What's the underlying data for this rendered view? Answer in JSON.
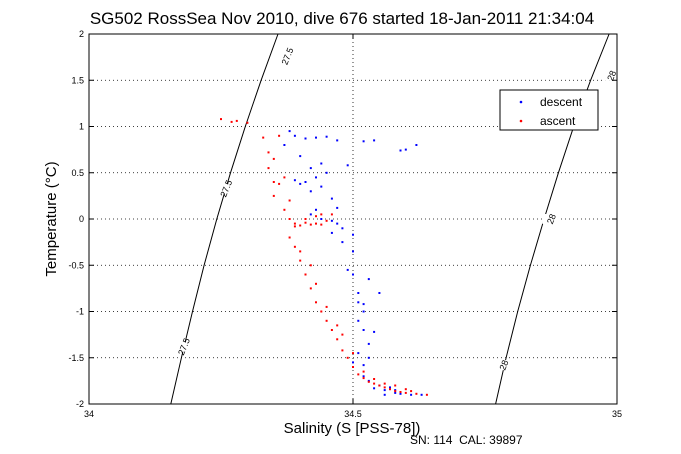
{
  "chart_data": {
    "type": "scatter",
    "title": "SG502 RossSea Nov 2010, dive 676 started 18-Jan-2011 21:34:04",
    "xlabel": "Salinity (S [PSS-78])",
    "ylabel": "Temperature (°C)",
    "xlim": [
      34,
      35
    ],
    "ylim": [
      -2,
      2
    ],
    "x_ticks": [
      "34",
      "34.5",
      "35"
    ],
    "y_ticks": [
      "-2",
      "-1.5",
      "-1",
      "-0.5",
      "0",
      "0.5",
      "1",
      "1.5",
      "2"
    ],
    "grid": true,
    "legend_position": "top-right",
    "footer": "SN: 114  CAL: 39897",
    "contours": [
      {
        "label": "27.5",
        "points": [
          [
            34.155,
            -2.0
          ],
          [
            34.175,
            -1.5
          ],
          [
            34.196,
            -1.0
          ],
          [
            34.218,
            -0.5
          ],
          [
            34.242,
            0.0
          ],
          [
            34.268,
            0.5
          ],
          [
            34.296,
            1.0
          ],
          [
            34.326,
            1.5
          ],
          [
            34.358,
            2.0
          ]
        ],
        "labels_at": [
          [
            34.18,
            -1.38
          ],
          [
            34.26,
            0.33
          ],
          [
            34.376,
            1.76
          ]
        ]
      },
      {
        "label": "28",
        "points": [
          [
            34.77,
            -2.0
          ],
          [
            34.79,
            -1.5
          ],
          [
            34.812,
            -1.0
          ],
          [
            34.836,
            -0.5
          ],
          [
            34.862,
            0.0
          ],
          [
            34.889,
            0.5
          ],
          [
            34.918,
            1.0
          ],
          [
            34.95,
            1.5
          ],
          [
            34.985,
            2.0
          ]
        ],
        "labels_at": [
          [
            34.786,
            -1.58
          ],
          [
            34.876,
            0.0
          ],
          [
            34.99,
            1.55
          ]
        ]
      }
    ],
    "series": [
      {
        "name": "descent",
        "color": "#0000ff",
        "points": [
          [
            34.37,
            0.8
          ],
          [
            34.38,
            0.95
          ],
          [
            34.39,
            0.9
          ],
          [
            34.41,
            0.87
          ],
          [
            34.43,
            0.88
          ],
          [
            34.45,
            0.89
          ],
          [
            34.47,
            0.85
          ],
          [
            34.49,
            0.58
          ],
          [
            34.52,
            0.84
          ],
          [
            34.54,
            0.85
          ],
          [
            34.59,
            0.74
          ],
          [
            34.6,
            0.75
          ],
          [
            34.62,
            0.8
          ],
          [
            34.4,
            0.68
          ],
          [
            34.42,
            0.55
          ],
          [
            34.43,
            0.45
          ],
          [
            34.41,
            0.4
          ],
          [
            34.39,
            0.42
          ],
          [
            34.4,
            0.38
          ],
          [
            34.42,
            0.3
          ],
          [
            34.44,
            0.35
          ],
          [
            34.45,
            0.5
          ],
          [
            34.46,
            0.22
          ],
          [
            34.43,
            0.1
          ],
          [
            34.42,
            0.05
          ],
          [
            34.44,
            0.0
          ],
          [
            34.46,
            -0.02
          ],
          [
            34.47,
            -0.05
          ],
          [
            34.48,
            -0.1
          ],
          [
            34.5,
            -0.17
          ],
          [
            34.5,
            -0.35
          ],
          [
            34.5,
            -0.6
          ],
          [
            34.51,
            -0.8
          ],
          [
            34.51,
            -0.9
          ],
          [
            34.52,
            -1.0
          ],
          [
            34.51,
            -1.1
          ],
          [
            34.52,
            -1.2
          ],
          [
            34.53,
            -1.35
          ],
          [
            34.51,
            -1.45
          ],
          [
            34.5,
            -1.55
          ],
          [
            34.52,
            -1.58
          ],
          [
            34.53,
            -1.5
          ],
          [
            34.52,
            -1.7
          ],
          [
            34.53,
            -1.75
          ],
          [
            34.55,
            -1.8
          ],
          [
            34.56,
            -1.85
          ],
          [
            34.57,
            -1.82
          ],
          [
            34.58,
            -1.88
          ],
          [
            34.54,
            -1.83
          ],
          [
            34.56,
            -1.9
          ],
          [
            34.58,
            -1.85
          ],
          [
            34.59,
            -1.89
          ],
          [
            34.61,
            -1.9
          ],
          [
            34.63,
            -1.9
          ],
          [
            34.52,
            -0.92
          ],
          [
            34.54,
            -1.22
          ],
          [
            34.55,
            -0.8
          ],
          [
            34.49,
            -0.55
          ],
          [
            34.48,
            -0.25
          ],
          [
            34.46,
            -0.15
          ],
          [
            34.53,
            -0.65
          ],
          [
            34.47,
            0.12
          ],
          [
            34.44,
            0.6
          ]
        ]
      },
      {
        "name": "ascent",
        "color": "#ff0000",
        "points": [
          [
            34.25,
            1.08
          ],
          [
            34.27,
            1.05
          ],
          [
            34.28,
            1.06
          ],
          [
            34.3,
            1.04
          ],
          [
            34.33,
            0.88
          ],
          [
            34.34,
            0.72
          ],
          [
            34.35,
            0.65
          ],
          [
            34.34,
            0.55
          ],
          [
            34.35,
            0.4
          ],
          [
            34.36,
            0.38
          ],
          [
            34.35,
            0.25
          ],
          [
            34.37,
            0.1
          ],
          [
            34.38,
            0.0
          ],
          [
            34.39,
            -0.05
          ],
          [
            34.4,
            -0.07
          ],
          [
            34.41,
            -0.04
          ],
          [
            34.42,
            -0.06
          ],
          [
            34.43,
            -0.05
          ],
          [
            34.44,
            -0.06
          ],
          [
            34.45,
            -0.02
          ],
          [
            34.46,
            0.05
          ],
          [
            34.44,
            0.05
          ],
          [
            34.43,
            0.03
          ],
          [
            34.41,
            0.0
          ],
          [
            34.39,
            -0.08
          ],
          [
            34.38,
            -0.2
          ],
          [
            34.39,
            -0.3
          ],
          [
            34.4,
            -0.45
          ],
          [
            34.41,
            -0.6
          ],
          [
            34.42,
            -0.75
          ],
          [
            34.43,
            -0.9
          ],
          [
            34.44,
            -1.0
          ],
          [
            34.45,
            -1.1
          ],
          [
            34.46,
            -1.2
          ],
          [
            34.47,
            -1.3
          ],
          [
            34.48,
            -1.42
          ],
          [
            34.49,
            -1.5
          ],
          [
            34.5,
            -1.6
          ],
          [
            34.51,
            -1.68
          ],
          [
            34.52,
            -1.72
          ],
          [
            34.53,
            -1.76
          ],
          [
            34.54,
            -1.78
          ],
          [
            34.55,
            -1.8
          ],
          [
            34.56,
            -1.82
          ],
          [
            34.57,
            -1.84
          ],
          [
            34.58,
            -1.86
          ],
          [
            34.59,
            -1.87
          ],
          [
            34.6,
            -1.88
          ],
          [
            34.62,
            -1.89
          ],
          [
            34.64,
            -1.9
          ],
          [
            34.36,
            0.9
          ],
          [
            34.37,
            0.45
          ],
          [
            34.38,
            0.2
          ],
          [
            34.4,
            -0.35
          ],
          [
            34.42,
            -0.5
          ],
          [
            34.43,
            -0.7
          ],
          [
            34.45,
            -0.95
          ],
          [
            34.47,
            -1.15
          ],
          [
            34.48,
            -1.25
          ],
          [
            34.5,
            -1.45
          ],
          [
            34.52,
            -1.65
          ],
          [
            34.54,
            -1.73
          ],
          [
            34.56,
            -1.78
          ],
          [
            34.58,
            -1.8
          ],
          [
            34.6,
            -1.84
          ],
          [
            34.61,
            -1.86
          ]
        ]
      }
    ]
  }
}
